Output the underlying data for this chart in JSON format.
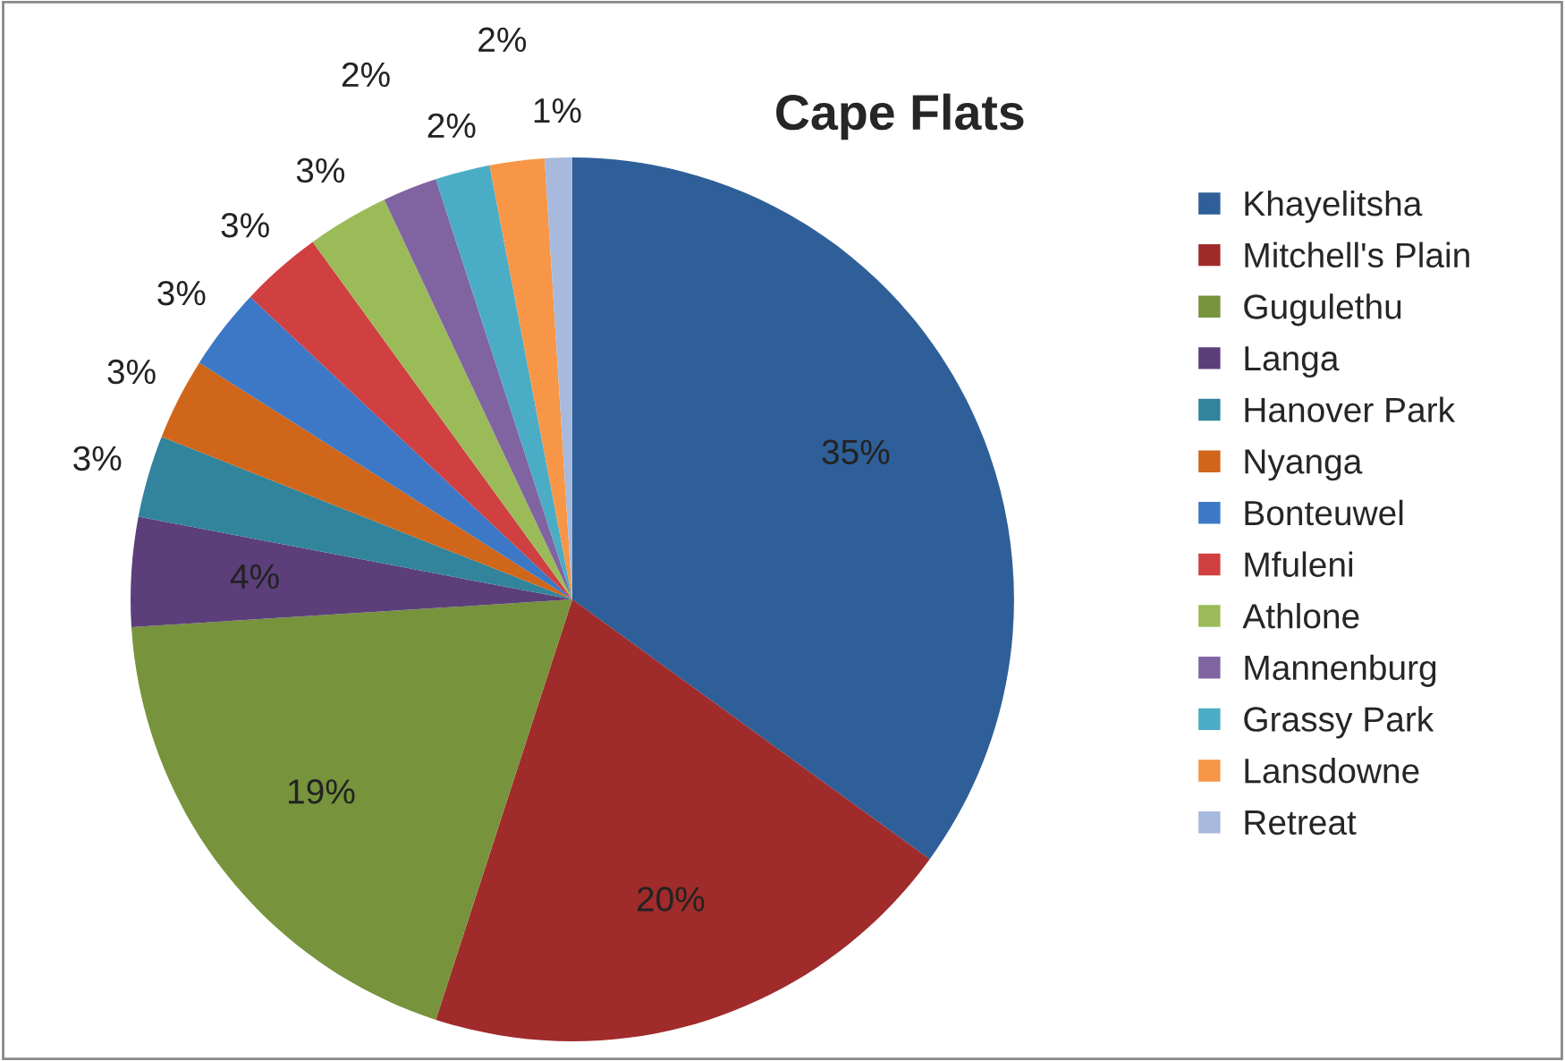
{
  "chart_data": {
    "type": "pie",
    "title": "Cape Flats",
    "categories": [
      "Khayelitsha",
      "Mitchell's Plain",
      "Gugulethu",
      "Langa",
      "Hanover Park",
      "Nyanga",
      "Bonteuwel",
      "Mfuleni",
      "Athlone",
      "Mannenburg",
      "Grassy Park",
      "Lansdowne",
      "Retreat"
    ],
    "values": [
      35,
      20,
      19,
      4,
      3,
      3,
      3,
      3,
      3,
      2,
      2,
      2,
      1
    ],
    "colors": [
      "#2f5f98",
      "#a02b2b",
      "#77933c",
      "#5c3f7a",
      "#31849b",
      "#d0661a",
      "#3c78c6",
      "#d04040",
      "#9bbb59",
      "#8064a2",
      "#4bacc6",
      "#f79646",
      "#a7b9dc"
    ],
    "value_labels": [
      "35%",
      "20%",
      "19%",
      "4%",
      "3%",
      "3%",
      "3%",
      "3%",
      "3%",
      "2%",
      "2%",
      "2%",
      "1%"
    ],
    "legend": "right"
  }
}
